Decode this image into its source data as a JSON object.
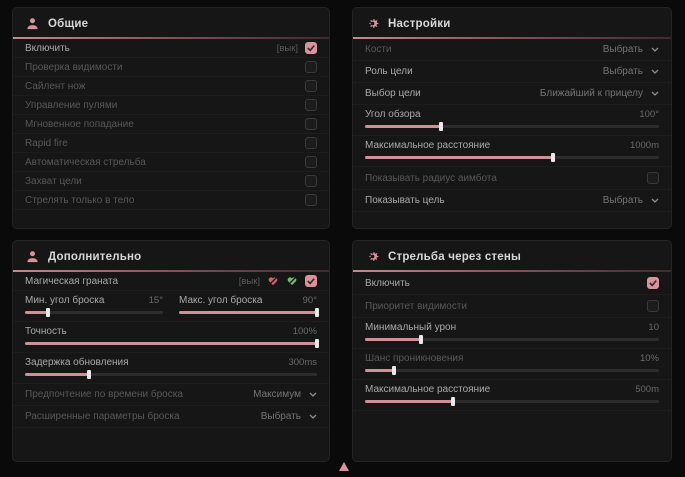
{
  "colors": {
    "accent": "#d9939b",
    "panel_bg": "#161616",
    "page_bg": "#0a0a0a",
    "slider_fill": "#cf9097"
  },
  "panels": {
    "general": {
      "title": "Общие",
      "rows": [
        {
          "label": "Включить",
          "bind": "[вык]",
          "checked": true
        },
        {
          "label": "Проверка видимости",
          "checked": false
        },
        {
          "label": "Сайлент нож",
          "checked": false
        },
        {
          "label": "Управление пулями",
          "checked": false
        },
        {
          "label": "Мгновенное попадание",
          "checked": false
        },
        {
          "label": "Rapid fire",
          "checked": false
        },
        {
          "label": "Автоматическая стрельба",
          "checked": false
        },
        {
          "label": "Захват цели",
          "checked": false
        },
        {
          "label": "Стрелять только в тело",
          "checked": false
        }
      ]
    },
    "settings": {
      "title": "Настройки",
      "rows": [
        {
          "label": "Кости",
          "value": "Выбрать"
        },
        {
          "label": "Роль цели",
          "value": "Выбрать"
        },
        {
          "label": "Выбор цели",
          "value": "Ближайший к прицелу"
        },
        {
          "label": "Угол обзора",
          "value": "100°",
          "fill": 26
        },
        {
          "label": "Максимальное расстояние",
          "value": "1000m",
          "fill": 64
        },
        {
          "label": "Показывать радиус аимбота",
          "checked": false
        },
        {
          "label": "Показывать цель",
          "value": "Выбрать"
        }
      ]
    },
    "additional": {
      "title": "Дополнительно",
      "rows": [
        {
          "label": "Магическая граната",
          "bind": "[вык]",
          "checked": true
        },
        {
          "label": "Мин. угол броска",
          "value": "15°",
          "fill": 17
        },
        {
          "label": "Макс. угол броска",
          "value": "90°",
          "fill": 100
        },
        {
          "label": "Точность",
          "value": "100%",
          "fill": 100
        },
        {
          "label": "Задержка обновления",
          "value": "300ms",
          "fill": 22
        },
        {
          "label": "Предпочтение по времени броска",
          "value": "Максимум"
        },
        {
          "label": "Расширенные параметры броска",
          "value": "Выбрать"
        }
      ]
    },
    "wallshoot": {
      "title": "Стрельба через стены",
      "rows": [
        {
          "label": "Включить",
          "checked": true
        },
        {
          "label": "Приоритет видимости",
          "checked": false
        },
        {
          "label": "Минимальный урон",
          "value": "10",
          "fill": 19
        },
        {
          "label": "Шанс проникновения",
          "value": "10%",
          "fill": 10
        },
        {
          "label": "Максимальное расстояние",
          "value": "500m",
          "fill": 30
        }
      ]
    }
  }
}
